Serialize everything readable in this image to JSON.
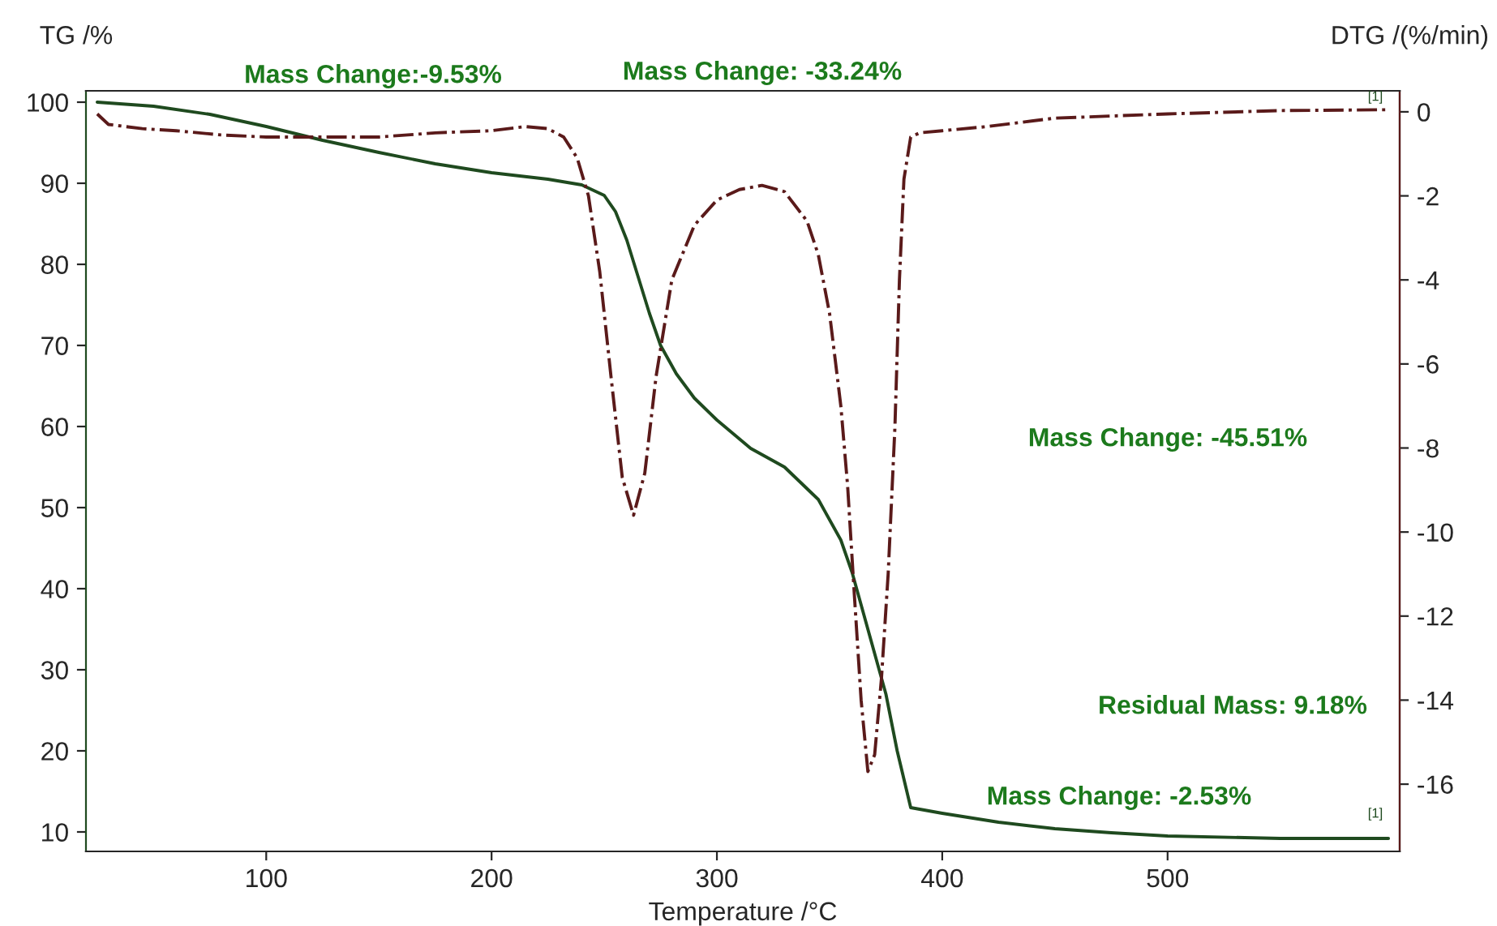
{
  "chart_data": {
    "type": "line",
    "xlabel": "Temperature /°C",
    "ylabel": "TG /%",
    "y2label": "DTG /(%/min)",
    "xlim": [
      20,
      603
    ],
    "ylim": [
      7.6,
      101.4
    ],
    "y2lim": [
      -17.6,
      0.5
    ],
    "xticks": [
      100,
      200,
      300,
      400,
      500
    ],
    "yticks": [
      10,
      20,
      30,
      40,
      50,
      60,
      70,
      80,
      90,
      100
    ],
    "y2ticks": [
      0,
      -2,
      -4,
      -6,
      -8,
      -10,
      -12,
      -14,
      -16
    ],
    "grid": false,
    "legend": false,
    "series": [
      {
        "color": "#1f4a1f",
        "line_style": "solid",
        "x": [
          25,
          50,
          75,
          100,
          125,
          150,
          175,
          200,
          225,
          240,
          250,
          255,
          260,
          265,
          270,
          275,
          282,
          290,
          300,
          315,
          330,
          345,
          355,
          360,
          365,
          370,
          375,
          380,
          386,
          400,
          425,
          450,
          475,
          500,
          550,
          598
        ],
        "values": [
          100,
          99.5,
          98.5,
          97,
          95.3,
          93.8,
          92.4,
          91.3,
          90.5,
          89.8,
          88.5,
          86.5,
          83,
          78.5,
          74,
          70,
          66.5,
          63.5,
          60.8,
          57.3,
          55,
          51,
          46,
          42,
          37,
          32,
          27,
          20,
          13,
          12.3,
          11.2,
          10.4,
          9.9,
          9.5,
          9.2,
          9.2
        ]
      },
      {
        "color": "#5a1a1a",
        "line_style": "dashdot",
        "axis": "y2",
        "x": [
          25,
          30,
          45,
          60,
          80,
          100,
          125,
          150,
          175,
          200,
          215,
          225,
          232,
          238,
          243,
          248,
          253,
          258,
          263,
          268,
          273,
          280,
          290,
          300,
          310,
          320,
          330,
          340,
          345,
          350,
          355,
          358,
          361,
          364,
          367,
          370,
          373,
          376,
          379,
          381,
          383,
          386,
          390,
          400,
          420,
          450,
          500,
          550,
          598
        ],
        "values": [
          -0.05,
          -0.3,
          -0.4,
          -0.45,
          -0.55,
          -0.6,
          -0.6,
          -0.6,
          -0.5,
          -0.45,
          -0.35,
          -0.4,
          -0.6,
          -1.1,
          -2,
          -3.8,
          -6.3,
          -8.7,
          -9.6,
          -8.6,
          -6.3,
          -4,
          -2.7,
          -2.1,
          -1.85,
          -1.75,
          -1.9,
          -2.6,
          -3.4,
          -4.8,
          -7,
          -8.9,
          -11.5,
          -14,
          -15.7,
          -15.3,
          -13.5,
          -11,
          -7.5,
          -4,
          -1.6,
          -0.6,
          -0.5,
          -0.45,
          -0.35,
          -0.15,
          -0.05,
          0.03,
          0.05
        ]
      }
    ],
    "annotations": [
      "Mass Change:-9.53%",
      "Mass Change: -33.24%",
      "Mass Change: -45.51%",
      "Residual Mass: 9.18%",
      "Mass Change: -2.53%",
      "[1]",
      "[1]"
    ]
  }
}
